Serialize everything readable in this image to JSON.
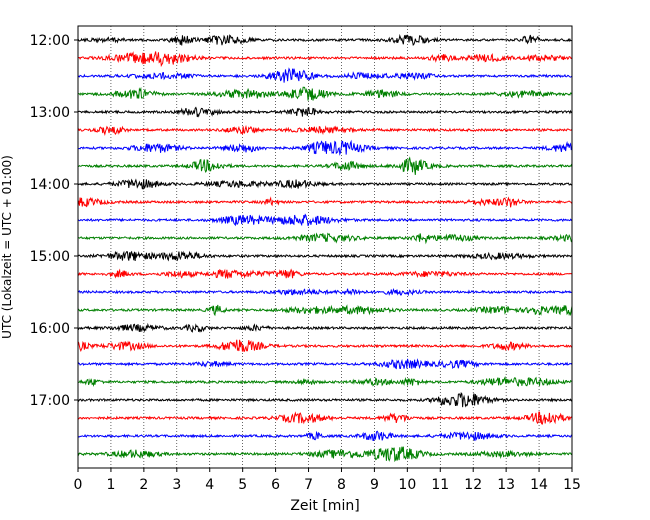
{
  "chart_data": {
    "type": "line",
    "title": "",
    "xlabel": "Zeit  [min]",
    "ylabel": "UTC (Lokalzeit = UTC + 01:00)",
    "xlim": [
      0,
      15
    ],
    "x_ticks": [
      "0",
      "1",
      "2",
      "3",
      "4",
      "5",
      "6",
      "7",
      "8",
      "9",
      "10",
      "11",
      "12",
      "13",
      "14",
      "15"
    ],
    "y_ticks": [
      "12:00",
      "13:00",
      "14:00",
      "15:00",
      "16:00",
      "17:00"
    ],
    "vertical_grid": "dotted",
    "row_interval_minutes": 15,
    "trace_color_cycle": [
      "#000000",
      "#ff0000",
      "#0000ff",
      "#008000"
    ],
    "series": [
      {
        "start": "12:00",
        "color": "#000000"
      },
      {
        "start": "12:15",
        "color": "#ff0000"
      },
      {
        "start": "12:30",
        "color": "#0000ff"
      },
      {
        "start": "12:45",
        "color": "#008000"
      },
      {
        "start": "13:00",
        "color": "#000000"
      },
      {
        "start": "13:15",
        "color": "#ff0000"
      },
      {
        "start": "13:30",
        "color": "#0000ff"
      },
      {
        "start": "13:45",
        "color": "#008000"
      },
      {
        "start": "14:00",
        "color": "#000000"
      },
      {
        "start": "14:15",
        "color": "#ff0000"
      },
      {
        "start": "14:30",
        "color": "#0000ff"
      },
      {
        "start": "14:45",
        "color": "#008000"
      },
      {
        "start": "15:00",
        "color": "#000000"
      },
      {
        "start": "15:15",
        "color": "#ff0000"
      },
      {
        "start": "15:30",
        "color": "#0000ff"
      },
      {
        "start": "15:45",
        "color": "#008000"
      },
      {
        "start": "16:00",
        "color": "#000000"
      },
      {
        "start": "16:15",
        "color": "#ff0000"
      },
      {
        "start": "16:30",
        "color": "#0000ff"
      },
      {
        "start": "16:45",
        "color": "#008000"
      },
      {
        "start": "17:00",
        "color": "#000000"
      },
      {
        "start": "17:15",
        "color": "#ff0000"
      },
      {
        "start": "17:30",
        "color": "#0000ff"
      },
      {
        "start": "17:45",
        "color": "#008000"
      }
    ]
  }
}
